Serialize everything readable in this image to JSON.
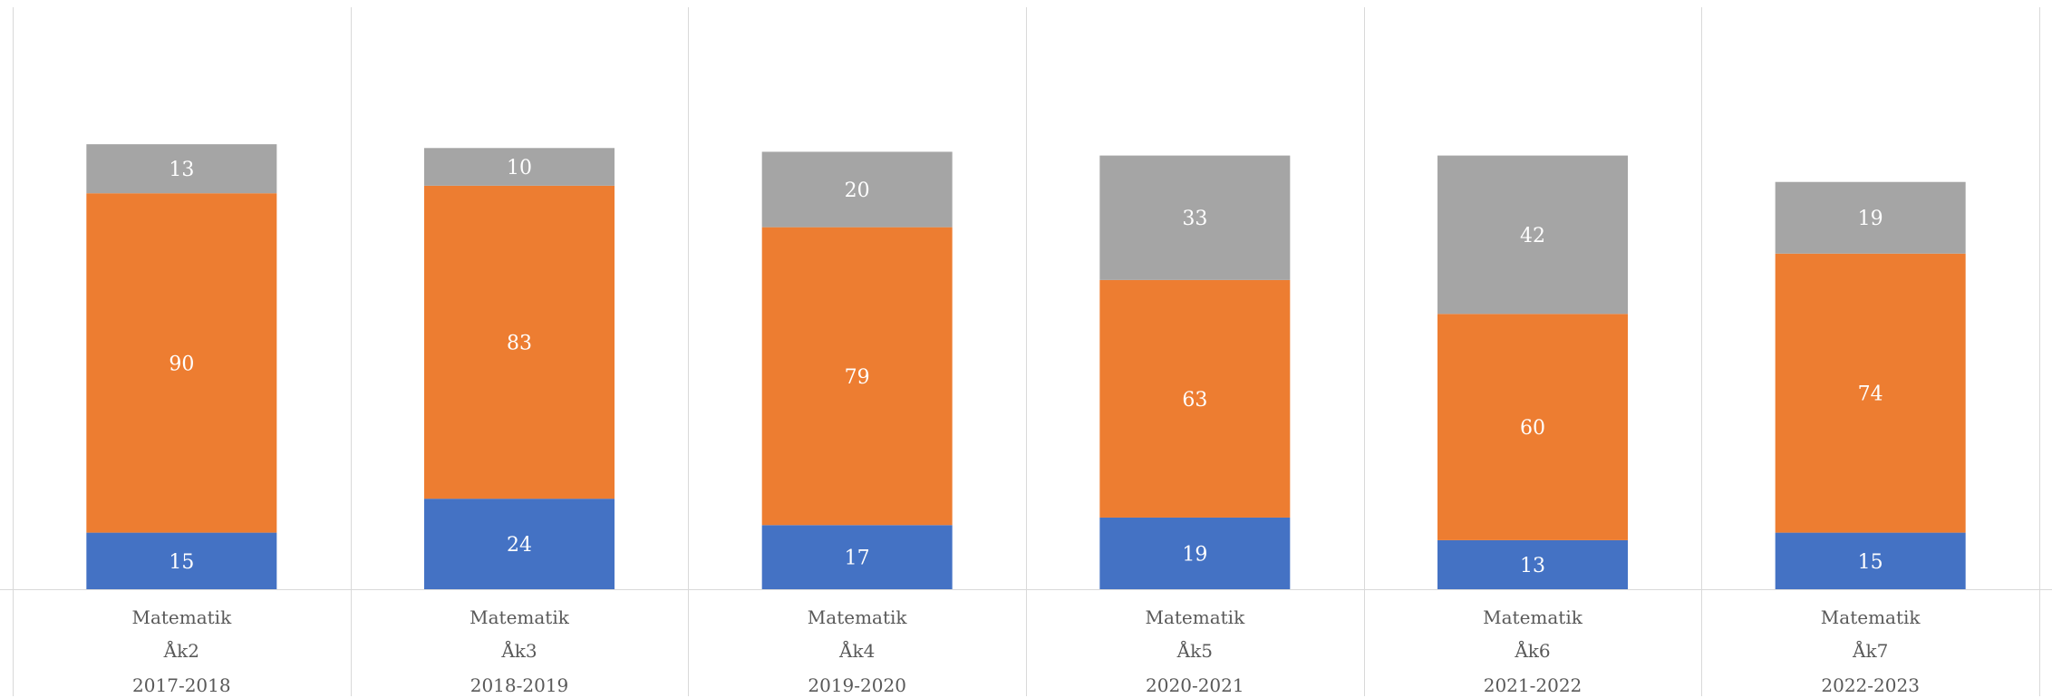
{
  "chart_data": {
    "type": "bar",
    "stacked": true,
    "title": "",
    "xlabel": "",
    "ylabel": "",
    "categories": [
      [
        "Matematik",
        "Åk2",
        "2017-2018"
      ],
      [
        "Matematik",
        "Åk3",
        "2018-2019"
      ],
      [
        "Matematik",
        "Åk4",
        "2019-2020"
      ],
      [
        "Matematik",
        "Åk5",
        "2020-2021"
      ],
      [
        "Matematik",
        "Åk6",
        "2021-2022"
      ],
      [
        "Matematik",
        "Åk7",
        "2022-2023"
      ]
    ],
    "series": [
      {
        "color": "#4472C4",
        "values": [
          15,
          24,
          17,
          19,
          13,
          15
        ]
      },
      {
        "color": "#ED7D31",
        "values": [
          90,
          83,
          79,
          63,
          60,
          74
        ]
      },
      {
        "color": "#A5A5A5",
        "values": [
          13,
          10,
          20,
          33,
          42,
          19
        ]
      }
    ],
    "ylim": [
      0,
      140
    ],
    "data_label_color": "#ffffff",
    "category_label_color": "#595959",
    "gridline_color": "#d9d9d9",
    "grid": false,
    "legend": "none"
  }
}
